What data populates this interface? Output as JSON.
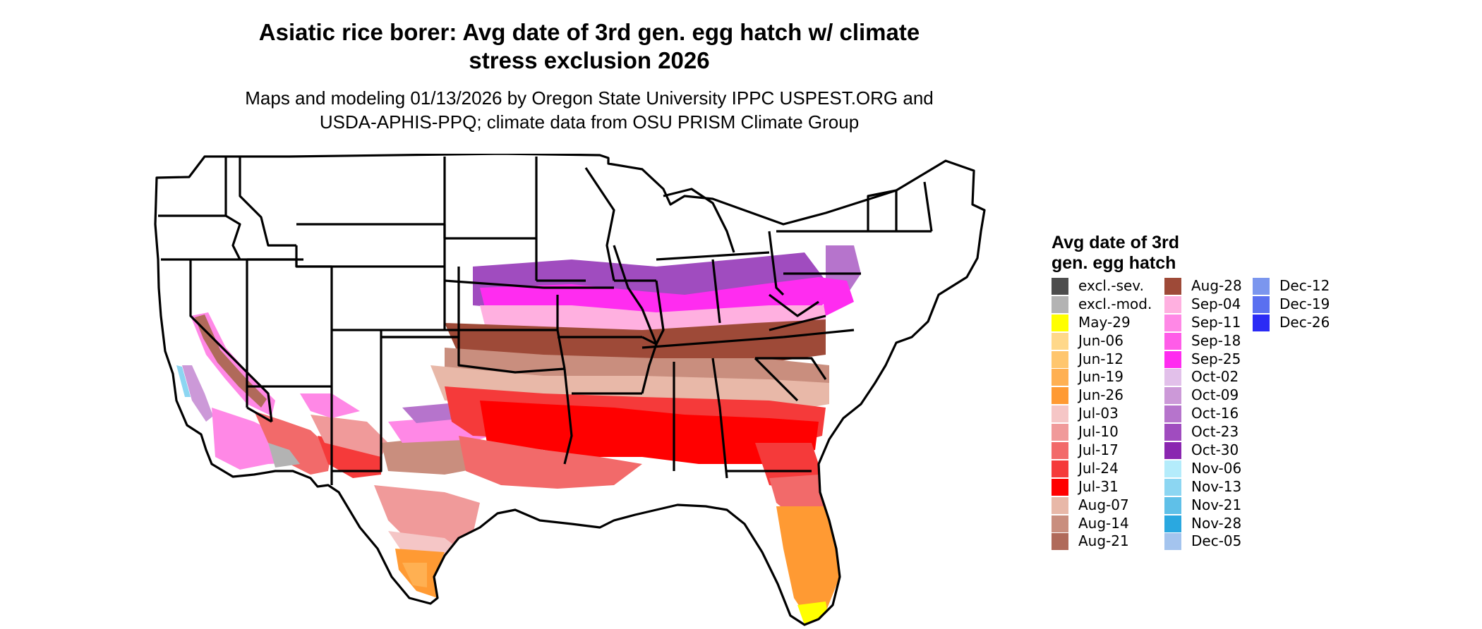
{
  "title": {
    "line1": "Asiatic rice borer: Avg date of 3rd gen. egg hatch w/ climate",
    "line2": "stress exclusion 2026"
  },
  "subtitle": {
    "line1": "Maps and modeling 01/13/2026 by Oregon State University IPPC USPEST.ORG and",
    "line2": "USDA-APHIS-PPQ; climate data from OSU PRISM Climate Group"
  },
  "legend": {
    "title_line1": "Avg date of 3rd",
    "title_line2": "gen. egg hatch",
    "columns": [
      [
        {
          "label": "excl.-sev.",
          "color": "#4d4d4d"
        },
        {
          "label": "excl.-mod.",
          "color": "#b3b3b3"
        },
        {
          "label": "May-29",
          "color": "#ffff00"
        },
        {
          "label": "Jun-06",
          "color": "#ffd88a"
        },
        {
          "label": "Jun-12",
          "color": "#ffc66e"
        },
        {
          "label": "Jun-19",
          "color": "#ffb052"
        },
        {
          "label": "Jun-26",
          "color": "#ff9a33"
        },
        {
          "label": "Jul-03",
          "color": "#f5c6c6"
        },
        {
          "label": "Jul-10",
          "color": "#f09a9a"
        },
        {
          "label": "Jul-17",
          "color": "#f26a6a"
        },
        {
          "label": "Jul-24",
          "color": "#f53a3a"
        },
        {
          "label": "Jul-31",
          "color": "#ff0000"
        },
        {
          "label": "Aug-07",
          "color": "#e8b8a8"
        },
        {
          "label": "Aug-14",
          "color": "#c98e7e"
        },
        {
          "label": "Aug-21",
          "color": "#b06a5a"
        }
      ],
      [
        {
          "label": "Aug-28",
          "color": "#9e4a38"
        },
        {
          "label": "Sep-04",
          "color": "#ffb0e0"
        },
        {
          "label": "Sep-11",
          "color": "#ff88e6"
        },
        {
          "label": "Sep-18",
          "color": "#ff5ce8"
        },
        {
          "label": "Sep-25",
          "color": "#ff2cf0"
        },
        {
          "label": "Oct-02",
          "color": "#e2c0ea"
        },
        {
          "label": "Oct-09",
          "color": "#cc99d8"
        },
        {
          "label": "Oct-16",
          "color": "#b674cc"
        },
        {
          "label": "Oct-23",
          "color": "#a04cbf"
        },
        {
          "label": "Oct-30",
          "color": "#8a26b0"
        },
        {
          "label": "Nov-06",
          "color": "#b4ecfb"
        },
        {
          "label": "Nov-13",
          "color": "#8cd6f2"
        },
        {
          "label": "Nov-21",
          "color": "#5fc0e8"
        },
        {
          "label": "Nov-28",
          "color": "#2aa8e0"
        },
        {
          "label": "Dec-05",
          "color": "#a4c4ee"
        }
      ],
      [
        {
          "label": "Dec-12",
          "color": "#7b96ee"
        },
        {
          "label": "Dec-19",
          "color": "#5a70f0"
        },
        {
          "label": "Dec-26",
          "color": "#2b2bf5"
        }
      ]
    ]
  },
  "map": {
    "region": "Contiguous United States",
    "colors": {
      "state_border": "#000000",
      "no_data": "#ffffff"
    }
  }
}
